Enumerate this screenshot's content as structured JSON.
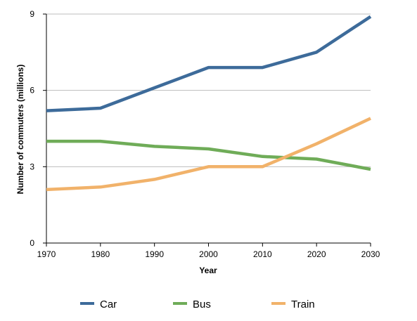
{
  "chart_data": {
    "type": "line",
    "title": "",
    "xlabel": "Year",
    "ylabel": "Number of commuters (millions)",
    "x": [
      "1970",
      "1980",
      "1990",
      "2000",
      "2010",
      "2020",
      "2030"
    ],
    "y_ticks": [
      "0",
      "3",
      "6",
      "9"
    ],
    "ylim": [
      0,
      9
    ],
    "grid": "horizontal",
    "legend_position": "bottom",
    "series": [
      {
        "name": "Car",
        "color": "#3d6b9a",
        "values": [
          5.2,
          5.3,
          6.1,
          6.9,
          6.9,
          7.5,
          8.9
        ]
      },
      {
        "name": "Bus",
        "color": "#6fac58",
        "values": [
          4.0,
          4.0,
          3.8,
          3.7,
          3.4,
          3.3,
          2.9
        ]
      },
      {
        "name": "Train",
        "color": "#f1b26a",
        "values": [
          2.1,
          2.2,
          2.5,
          3.0,
          3.0,
          3.9,
          4.9
        ]
      }
    ]
  }
}
